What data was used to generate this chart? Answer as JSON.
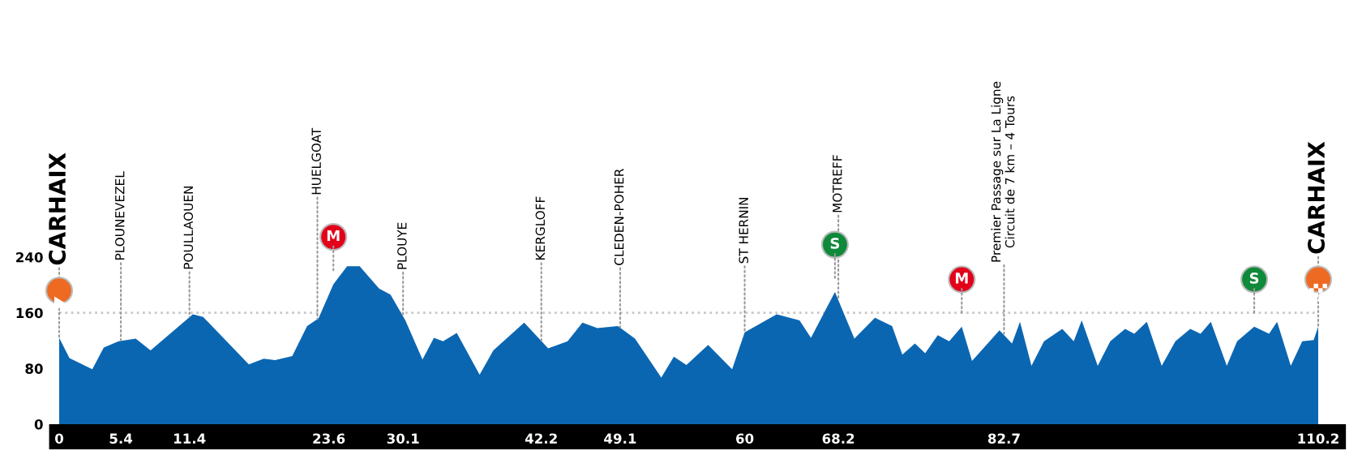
{
  "chart_data": {
    "type": "area",
    "xlim": [
      0,
      110.2
    ],
    "xticks": [
      0,
      5.4,
      11.4,
      23.6,
      30.1,
      42.2,
      49.1,
      60,
      68.2,
      82.7,
      110.2
    ],
    "ylim": [
      0,
      240
    ],
    "yticks": [
      0,
      80,
      160,
      240
    ],
    "grid": false,
    "ref_lines": [
      {
        "axis": "y",
        "value": 160,
        "color": "#c8c8c8",
        "line_style": "dotted"
      }
    ],
    "series": [
      {
        "color": "#0b66b2",
        "x": [
          0,
          0.9,
          2.9,
          3.9,
          5.2,
          6.7,
          8.0,
          11.7,
          12.6,
          16.6,
          17.9,
          18.9,
          20.4,
          21.7,
          22.7,
          24.0,
          25.2,
          26.3,
          28.0,
          29.0,
          30.3,
          31.8,
          32.8,
          33.6,
          34.8,
          36.8,
          38.0,
          40.7,
          42.8,
          44.5,
          45.8,
          47.1,
          48.9,
          50.4,
          52.7,
          53.8,
          54.9,
          56.8,
          58.9,
          60.0,
          62.8,
          64.8,
          65.8,
          67.9,
          69.6,
          71.4,
          72.9,
          73.8,
          74.9,
          75.8,
          76.9,
          77.9,
          79.0,
          79.9,
          82.3,
          83.4,
          84.1,
          85.1,
          86.2,
          87.8,
          88.8,
          89.5,
          90.9,
          92.0,
          93.3,
          94.1,
          95.2,
          96.5,
          97.7,
          99.0,
          99.9,
          100.8,
          102.2,
          103.1,
          104.6,
          105.9,
          106.6,
          107.8,
          108.8,
          109.8,
          110.2
        ],
        "values": [
          124,
          95,
          79,
          110,
          119,
          123,
          106,
          158,
          154,
          86,
          94,
          92,
          98,
          141,
          152,
          201,
          227,
          227,
          195,
          186,
          149,
          93,
          124,
          119,
          131,
          71,
          106,
          146,
          109,
          119,
          146,
          138,
          141,
          123,
          67,
          97,
          85,
          114,
          79,
          132,
          158,
          149,
          124,
          190,
          123,
          153,
          141,
          100,
          116,
          102,
          128,
          119,
          140,
          91,
          135,
          116,
          147,
          84,
          119,
          137,
          119,
          149,
          84,
          119,
          137,
          130,
          147,
          84,
          119,
          137,
          130,
          147,
          84,
          119,
          140,
          130,
          147,
          84,
          119,
          121,
          140
        ]
      }
    ],
    "annotations": [
      {
        "text": "CARHAIX",
        "x": 0,
        "y": 124
      },
      {
        "text": "PLOUNEVEZEL",
        "x": 5.4,
        "y": 120
      },
      {
        "text": "POULLAOUEN",
        "x": 11.4,
        "y": 154
      },
      {
        "text": "HUELGOAT",
        "x": 22.6,
        "y": 151
      },
      {
        "text": "M",
        "x": 24.0,
        "y": 201
      },
      {
        "text": "PLOUYE",
        "x": 30.1,
        "y": 155
      },
      {
        "text": "KERGLOFF",
        "x": 42.2,
        "y": 120
      },
      {
        "text": "CLEDEN-POHER",
        "x": 49.1,
        "y": 139
      },
      {
        "text": "ST HERNIN",
        "x": 60,
        "y": 132
      },
      {
        "text": "S",
        "x": 67.9,
        "y": 190
      },
      {
        "text": "MOTREFF",
        "x": 68.2,
        "y": 178
      },
      {
        "text": "M",
        "x": 79.0,
        "y": 140
      },
      {
        "text": "Premier Passage sur La Ligne\nCircuit de 7 km – 4 Tours",
        "x": 82.7,
        "y": 128
      },
      {
        "text": "S",
        "x": 104.6,
        "y": 140
      },
      {
        "text": "CARHAIX",
        "x": 110.2,
        "y": 140
      }
    ]
  }
}
